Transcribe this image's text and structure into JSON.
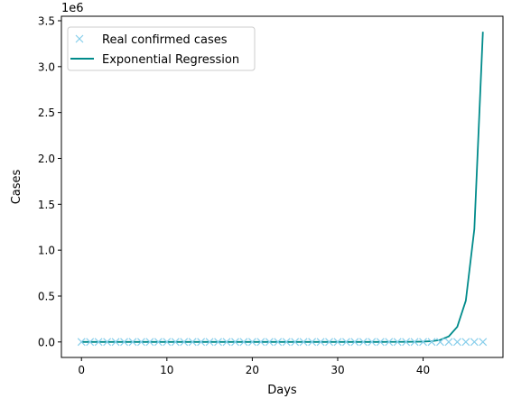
{
  "chart_data": {
    "type": "line",
    "xlabel": "Days",
    "ylabel": "Cases",
    "offset_label": "1e6",
    "xlim": [
      -2.35,
      49.35
    ],
    "ylim": [
      -169000,
      3549000
    ],
    "x_ticks": [
      0,
      10,
      20,
      30,
      40
    ],
    "x_tick_labels": [
      "0",
      "10",
      "20",
      "30",
      "40"
    ],
    "y_ticks": [
      0,
      500000,
      1000000,
      1500000,
      2000000,
      2500000,
      3000000,
      3500000
    ],
    "y_tick_labels": [
      "0.0",
      "0.5",
      "1.0",
      "1.5",
      "2.0",
      "2.5",
      "3.0",
      "3.5"
    ],
    "grid": false,
    "legend_position": "upper-left",
    "series": [
      {
        "name": "Real confirmed cases",
        "style": "marker-x",
        "color": "#87ceeb",
        "x": [
          0,
          1,
          2,
          3,
          4,
          5,
          6,
          7,
          8,
          9,
          10,
          11,
          12,
          13,
          14,
          15,
          16,
          17,
          18,
          19,
          20,
          21,
          22,
          23,
          24,
          25,
          26,
          27,
          28,
          29,
          30,
          31,
          32,
          33,
          34,
          35,
          36,
          37,
          38,
          39,
          40,
          41,
          42,
          43,
          44,
          45,
          46,
          47
        ],
        "y": [
          0,
          0,
          0,
          0,
          0,
          0,
          0,
          0,
          0,
          0,
          0,
          0,
          0,
          0,
          0,
          0,
          0,
          0,
          0,
          0,
          0,
          0,
          0,
          0,
          0,
          0,
          0,
          0,
          0,
          0,
          0,
          0,
          0,
          0,
          0,
          0,
          0,
          0,
          0,
          0,
          0,
          0,
          0,
          0,
          0,
          0,
          0,
          0
        ]
      },
      {
        "name": "Exponential Regression",
        "style": "line",
        "color": "#008b8b",
        "x": [
          0,
          1,
          2,
          3,
          4,
          5,
          6,
          7,
          8,
          9,
          10,
          11,
          12,
          13,
          14,
          15,
          16,
          17,
          18,
          19,
          20,
          21,
          22,
          23,
          24,
          25,
          26,
          27,
          28,
          29,
          30,
          31,
          32,
          33,
          34,
          35,
          36,
          37,
          38,
          39,
          40,
          41,
          42,
          43,
          44,
          45,
          46,
          47
        ],
        "y": [
          0,
          0,
          0,
          0,
          0,
          0,
          0,
          0,
          0,
          0,
          0,
          0,
          0,
          0,
          0,
          0,
          0,
          0,
          0,
          0,
          0,
          0,
          0,
          0,
          0,
          0,
          0,
          0,
          0,
          0,
          0,
          0,
          0,
          0,
          100,
          200,
          400,
          700,
          1200,
          2100,
          3500,
          8000,
          22000,
          60000,
          165000,
          450000,
          1230000,
          3380000
        ]
      }
    ]
  }
}
